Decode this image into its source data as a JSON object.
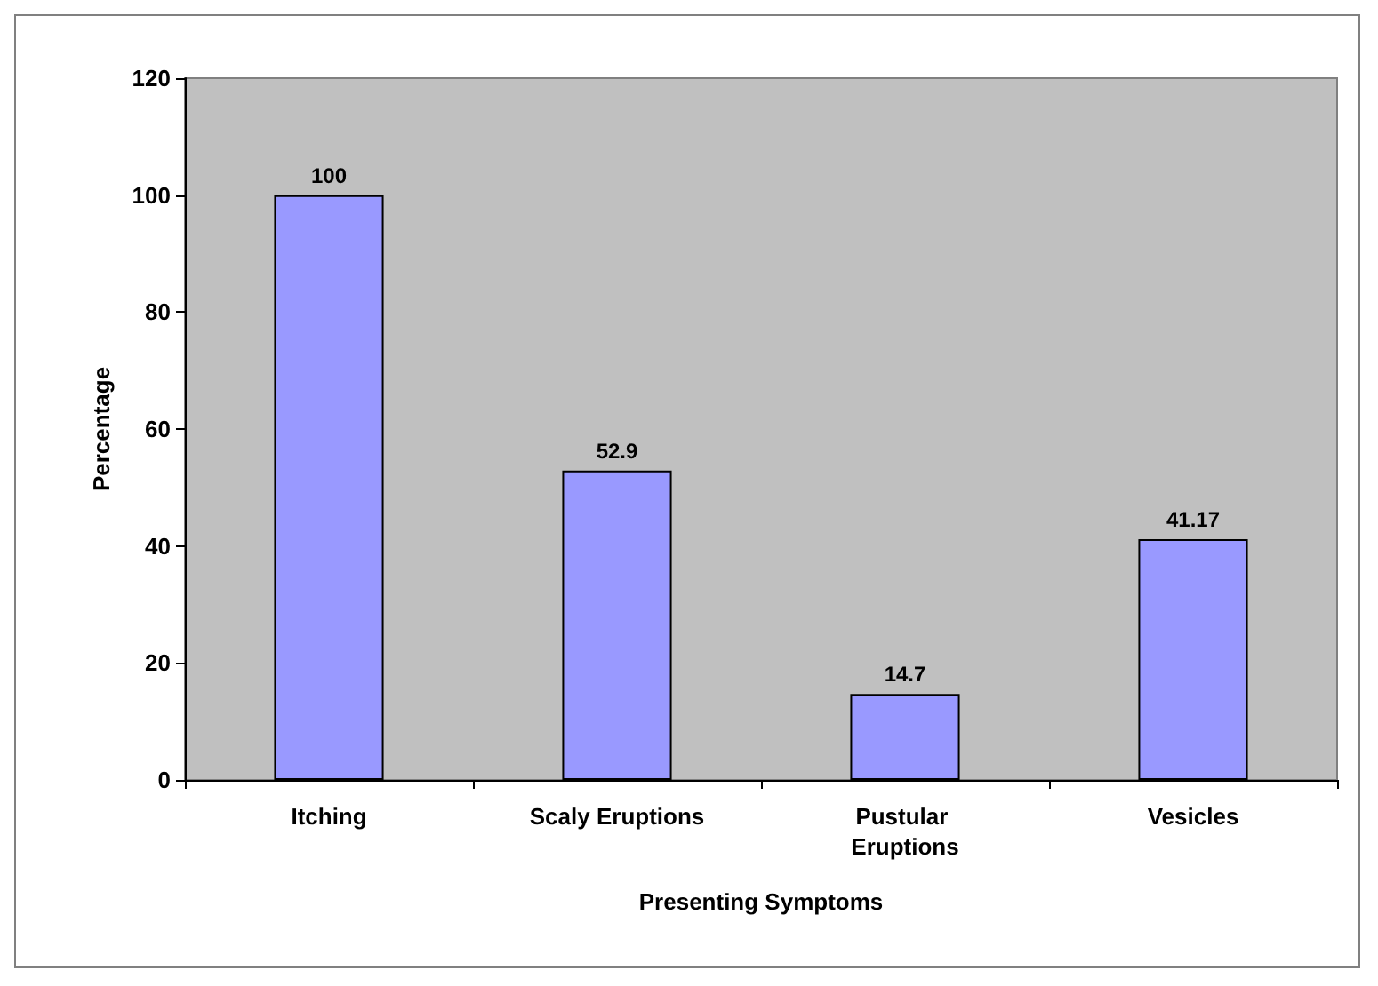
{
  "chart_data": {
    "type": "bar",
    "xlabel": "Presenting Symptoms",
    "ylabel": "Percentage",
    "categories": [
      "Itching",
      "Scaly Eruptions",
      "Pustular Eruptions",
      "Vesicles"
    ],
    "values": [
      100,
      52.9,
      14.7,
      41.17
    ],
    "color": "#9999ff",
    "ylim": [
      0,
      120
    ],
    "yticks": [
      0,
      20,
      40,
      60,
      80,
      100,
      120
    ],
    "grid": false,
    "data_labels": true
  }
}
